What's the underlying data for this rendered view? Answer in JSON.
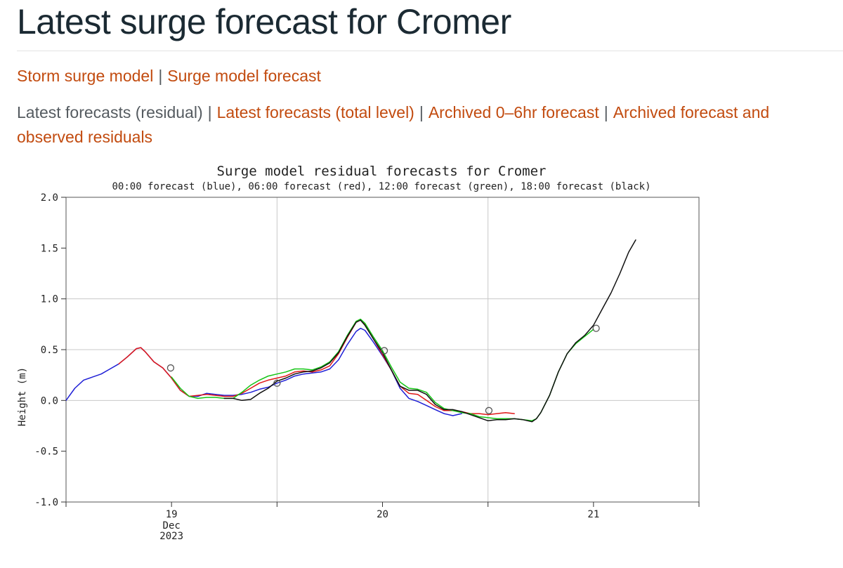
{
  "page": {
    "title": "Latest surge forecast for Cromer"
  },
  "nav_primary": [
    {
      "label": "Storm surge model"
    },
    {
      "label": "Surge model forecast"
    }
  ],
  "nav_secondary": {
    "current": "Latest forecasts (residual)",
    "links": [
      {
        "label": "Latest forecasts (total level)"
      },
      {
        "label": "Archived 0–6hr forecast"
      },
      {
        "label": "Archived forecast and observed residuals"
      }
    ]
  },
  "separator": "|",
  "chart_data": {
    "type": "line",
    "title": "Surge model residual forecasts for Cromer",
    "subtitle": "00:00 forecast (blue), 06:00 forecast (red), 12:00 forecast (green), 18:00 forecast (black)",
    "ylabel": "Height (m)",
    "xlabel": "",
    "ylim": [
      -1.0,
      2.0
    ],
    "xlim_hours": [
      0,
      72
    ],
    "y_ticks": [
      {
        "value": 2.0,
        "label": "2.0"
      },
      {
        "value": 1.5,
        "label": "1.5"
      },
      {
        "value": 1.0,
        "label": "1.0"
      },
      {
        "value": 0.5,
        "label": "0.5"
      },
      {
        "value": 0.0,
        "label": "0.0"
      },
      {
        "value": -0.5,
        "label": "-0.5"
      },
      {
        "value": -1.0,
        "label": "-1.0"
      }
    ],
    "x_ticks": [
      {
        "hour": 0,
        "label": ""
      },
      {
        "hour": 12,
        "label": "19"
      },
      {
        "hour": 24,
        "label": ""
      },
      {
        "hour": 36,
        "label": "20"
      },
      {
        "hour": 48,
        "label": ""
      },
      {
        "hour": 60,
        "label": "21"
      },
      {
        "hour": 72,
        "label": ""
      }
    ],
    "x_sublabel": [
      "Dec",
      "2023"
    ],
    "vertical_gridlines_hours": [
      24,
      48
    ],
    "horizontal_gridlines": [
      0.0,
      0.5,
      1.0
    ],
    "series": [
      {
        "name": "00:00 forecast (blue)",
        "color": "#1f1fd6",
        "points": [
          [
            0,
            0.0
          ],
          [
            1,
            0.12
          ],
          [
            2,
            0.2
          ],
          [
            3,
            0.23
          ],
          [
            4,
            0.26
          ],
          [
            5,
            0.31
          ],
          [
            6,
            0.36
          ],
          [
            7,
            0.43
          ],
          [
            8,
            0.51
          ],
          [
            8.5,
            0.52
          ],
          [
            9,
            0.48
          ],
          [
            10,
            0.38
          ],
          [
            11,
            0.32
          ],
          [
            12,
            0.22
          ],
          [
            13,
            0.1
          ],
          [
            14,
            0.04
          ],
          [
            15,
            0.04
          ],
          [
            16,
            0.07
          ],
          [
            17,
            0.06
          ],
          [
            18,
            0.05
          ],
          [
            19,
            0.05
          ],
          [
            20,
            0.06
          ],
          [
            21,
            0.08
          ],
          [
            22,
            0.11
          ],
          [
            23,
            0.13
          ],
          [
            24,
            0.17
          ],
          [
            25,
            0.2
          ],
          [
            26,
            0.24
          ],
          [
            27,
            0.26
          ],
          [
            28,
            0.27
          ],
          [
            29,
            0.28
          ],
          [
            30,
            0.31
          ],
          [
            31,
            0.4
          ],
          [
            32,
            0.55
          ],
          [
            33,
            0.68
          ],
          [
            33.5,
            0.71
          ],
          [
            34,
            0.69
          ],
          [
            35,
            0.57
          ],
          [
            36,
            0.44
          ],
          [
            37,
            0.3
          ],
          [
            38,
            0.12
          ],
          [
            39,
            0.02
          ],
          [
            40,
            -0.01
          ],
          [
            41,
            -0.05
          ],
          [
            42,
            -0.09
          ],
          [
            43,
            -0.13
          ],
          [
            44,
            -0.15
          ],
          [
            45,
            -0.13
          ]
        ]
      },
      {
        "name": "06:00 forecast (red)",
        "color": "#e01818",
        "points": [
          [
            6,
            0.36
          ],
          [
            7,
            0.43
          ],
          [
            8,
            0.51
          ],
          [
            8.5,
            0.52
          ],
          [
            9,
            0.48
          ],
          [
            10,
            0.38
          ],
          [
            11,
            0.32
          ],
          [
            12,
            0.22
          ],
          [
            13,
            0.1
          ],
          [
            14,
            0.04
          ],
          [
            15,
            0.05
          ],
          [
            16,
            0.06
          ],
          [
            17,
            0.05
          ],
          [
            18,
            0.04
          ],
          [
            19,
            0.04
          ],
          [
            20,
            0.07
          ],
          [
            21,
            0.12
          ],
          [
            22,
            0.17
          ],
          [
            23,
            0.2
          ],
          [
            24,
            0.22
          ],
          [
            25,
            0.24
          ],
          [
            26,
            0.28
          ],
          [
            27,
            0.29
          ],
          [
            28,
            0.28
          ],
          [
            29,
            0.3
          ],
          [
            30,
            0.34
          ],
          [
            31,
            0.46
          ],
          [
            32,
            0.62
          ],
          [
            33,
            0.77
          ],
          [
            33.5,
            0.79
          ],
          [
            34,
            0.75
          ],
          [
            35,
            0.6
          ],
          [
            36,
            0.45
          ],
          [
            37,
            0.3
          ],
          [
            38,
            0.14
          ],
          [
            39,
            0.07
          ],
          [
            40,
            0.06
          ],
          [
            41,
            0.0
          ],
          [
            42,
            -0.06
          ],
          [
            43,
            -0.1
          ],
          [
            44,
            -0.1
          ],
          [
            45,
            -0.11
          ],
          [
            46,
            -0.13
          ],
          [
            47,
            -0.13
          ],
          [
            48,
            -0.14
          ],
          [
            49,
            -0.13
          ],
          [
            50,
            -0.12
          ],
          [
            51,
            -0.13
          ]
        ]
      },
      {
        "name": "12:00 forecast (green)",
        "color": "#14c414",
        "points": [
          [
            12,
            0.23
          ],
          [
            13,
            0.12
          ],
          [
            14,
            0.04
          ],
          [
            15,
            0.02
          ],
          [
            16,
            0.03
          ],
          [
            17,
            0.03
          ],
          [
            18,
            0.02
          ],
          [
            19,
            0.02
          ],
          [
            20,
            0.08
          ],
          [
            21,
            0.15
          ],
          [
            22,
            0.2
          ],
          [
            23,
            0.24
          ],
          [
            24,
            0.26
          ],
          [
            25,
            0.28
          ],
          [
            26,
            0.31
          ],
          [
            27,
            0.31
          ],
          [
            28,
            0.3
          ],
          [
            29,
            0.33
          ],
          [
            30,
            0.38
          ],
          [
            31,
            0.48
          ],
          [
            32,
            0.64
          ],
          [
            33,
            0.78
          ],
          [
            33.5,
            0.8
          ],
          [
            34,
            0.76
          ],
          [
            35,
            0.62
          ],
          [
            36,
            0.49
          ],
          [
            37,
            0.33
          ],
          [
            38,
            0.18
          ],
          [
            39,
            0.12
          ],
          [
            40,
            0.11
          ],
          [
            41,
            0.08
          ],
          [
            42,
            -0.02
          ],
          [
            43,
            -0.08
          ],
          [
            44,
            -0.1
          ],
          [
            45,
            -0.12
          ],
          [
            46,
            -0.13
          ],
          [
            47,
            -0.16
          ],
          [
            48,
            -0.17
          ],
          [
            49,
            -0.18
          ],
          [
            50,
            -0.18
          ],
          [
            51,
            -0.18
          ],
          [
            52,
            -0.19
          ],
          [
            53,
            -0.2
          ],
          [
            53.5,
            -0.18
          ],
          [
            54,
            -0.12
          ],
          [
            55,
            0.05
          ],
          [
            56,
            0.28
          ],
          [
            57,
            0.46
          ],
          [
            58,
            0.56
          ],
          [
            59,
            0.63
          ],
          [
            60,
            0.7
          ]
        ]
      },
      {
        "name": "18:00 forecast (black)",
        "color": "#111111",
        "points": [
          [
            18,
            0.02
          ],
          [
            19,
            0.02
          ],
          [
            20,
            0.0
          ],
          [
            21,
            0.01
          ],
          [
            22,
            0.07
          ],
          [
            23,
            0.12
          ],
          [
            24,
            0.19
          ],
          [
            25,
            0.22
          ],
          [
            26,
            0.26
          ],
          [
            27,
            0.28
          ],
          [
            28,
            0.29
          ],
          [
            29,
            0.32
          ],
          [
            30,
            0.37
          ],
          [
            31,
            0.47
          ],
          [
            32,
            0.63
          ],
          [
            33,
            0.77
          ],
          [
            33.5,
            0.79
          ],
          [
            34,
            0.74
          ],
          [
            35,
            0.6
          ],
          [
            36,
            0.47
          ],
          [
            37,
            0.3
          ],
          [
            38,
            0.14
          ],
          [
            39,
            0.1
          ],
          [
            40,
            0.1
          ],
          [
            41,
            0.06
          ],
          [
            42,
            -0.04
          ],
          [
            43,
            -0.09
          ],
          [
            44,
            -0.09
          ],
          [
            45,
            -0.11
          ],
          [
            46,
            -0.14
          ],
          [
            47,
            -0.17
          ],
          [
            48,
            -0.2
          ],
          [
            49,
            -0.19
          ],
          [
            50,
            -0.19
          ],
          [
            51,
            -0.18
          ],
          [
            52,
            -0.19
          ],
          [
            53,
            -0.21
          ],
          [
            53.5,
            -0.18
          ],
          [
            54,
            -0.12
          ],
          [
            55,
            0.05
          ],
          [
            56,
            0.28
          ],
          [
            57,
            0.46
          ],
          [
            58,
            0.57
          ],
          [
            59,
            0.64
          ],
          [
            60,
            0.74
          ],
          [
            61,
            0.9
          ],
          [
            62,
            1.06
          ],
          [
            63,
            1.25
          ],
          [
            64,
            1.46
          ],
          [
            64.8,
            1.58
          ]
        ]
      }
    ],
    "markers": [
      {
        "hour": 11.9,
        "value": 0.32,
        "color": "#555555"
      },
      {
        "hour": 24.0,
        "value": 0.17,
        "color": "#555555"
      },
      {
        "hour": 36.2,
        "value": 0.49,
        "color": "#555555"
      },
      {
        "hour": 48.1,
        "value": -0.1,
        "color": "#555555"
      },
      {
        "hour": 60.3,
        "value": 0.71,
        "color": "#555555"
      }
    ]
  }
}
